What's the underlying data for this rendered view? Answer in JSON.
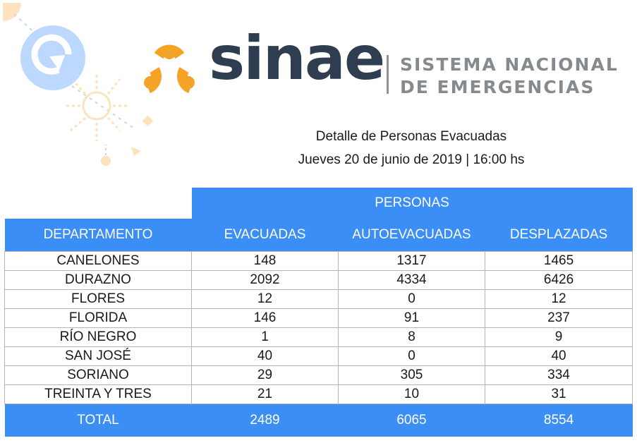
{
  "brand": {
    "name": "sinae",
    "tagline_line1": "SISTEMA NACIONAL",
    "tagline_line2": "DE EMERGENCIAS",
    "colors": {
      "orange": "#f5a327",
      "navy": "#2e3e50",
      "grey": "#858a8f",
      "table_blue": "#3b8ef5"
    }
  },
  "report": {
    "title": "Detalle de Personas Evacuadas",
    "date": "Jueves 20 de junio de 2019 | 16:00 hs"
  },
  "table": {
    "group_header": "PERSONAS",
    "columns": [
      "DEPARTAMENTO",
      "EVACUADAS",
      "AUTOEVACUADAS",
      "DESPLAZADAS"
    ],
    "rows": [
      [
        "CANELONES",
        "148",
        "1317",
        "1465"
      ],
      [
        "DURAZNO",
        "2092",
        "4334",
        "6426"
      ],
      [
        "FLORES",
        "12",
        "0",
        "12"
      ],
      [
        "FLORIDA",
        "146",
        "91",
        "237"
      ],
      [
        "RÍO NEGRO",
        "1",
        "8",
        "9"
      ],
      [
        "SAN JOSÉ",
        "40",
        "0",
        "40"
      ],
      [
        "SORIANO",
        "29",
        "305",
        "334"
      ],
      [
        "TREINTA Y TRES",
        "21",
        "10",
        "31"
      ]
    ],
    "total": [
      "TOTAL",
      "2489",
      "6065",
      "8554"
    ]
  }
}
